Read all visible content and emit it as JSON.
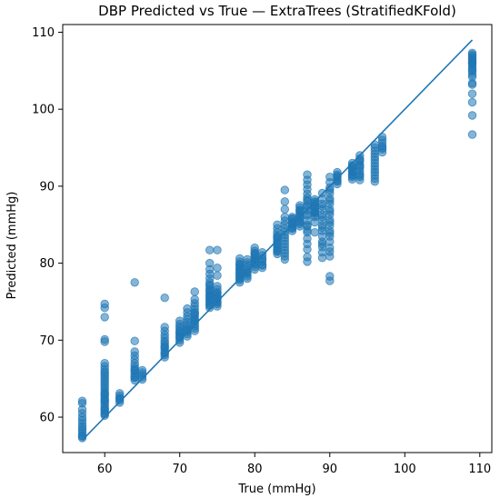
{
  "chart_data": {
    "type": "scatter",
    "title": "DBP Predicted vs True — ExtraTrees (StratifiedKFold)",
    "xlabel": "True (mmHg)",
    "ylabel": "Predicted (mmHg)",
    "xlim": [
      54.4,
      111.6
    ],
    "ylim": [
      55.4,
      111.0
    ],
    "xticks": [
      60,
      70,
      80,
      90,
      100,
      110
    ],
    "yticks": [
      60,
      70,
      80,
      90,
      100,
      110
    ],
    "grid": false,
    "point_color": "#1f77b4",
    "point_opacity": 0.55,
    "reference_line": {
      "x": [
        57,
        109
      ],
      "y": [
        57,
        109
      ],
      "color": "#1f77b4"
    },
    "points": {
      "x": [
        57,
        57,
        57,
        57,
        57,
        57,
        57,
        57,
        57,
        57,
        57,
        57,
        57,
        57,
        60,
        60,
        60,
        60,
        60,
        60,
        60,
        60,
        60,
        60,
        60,
        60,
        60,
        60,
        60,
        60,
        60,
        60,
        60,
        60,
        60,
        60,
        60,
        60,
        60,
        60,
        60,
        60,
        60,
        60,
        60,
        60,
        62,
        62,
        62,
        62,
        62,
        62,
        64,
        64,
        64,
        64,
        64,
        64,
        64,
        64,
        64,
        64,
        64,
        64,
        64,
        64,
        64,
        65,
        65,
        65,
        65,
        65,
        68,
        68,
        68,
        68,
        68,
        68,
        68,
        68,
        68,
        68,
        68,
        68,
        68,
        68,
        68,
        70,
        70,
        70,
        70,
        70,
        70,
        70,
        70,
        70,
        70,
        70,
        70,
        71,
        71,
        71,
        71,
        71,
        71,
        71,
        71,
        71,
        71,
        71,
        71,
        72,
        72,
        72,
        72,
        72,
        72,
        72,
        72,
        72,
        72,
        72,
        72,
        72,
        72,
        72,
        72,
        74,
        74,
        74,
        74,
        74,
        74,
        74,
        74,
        74,
        74,
        74,
        74,
        74,
        74,
        74,
        74,
        74,
        74,
        74,
        74,
        74,
        75,
        75,
        75,
        75,
        75,
        75,
        75,
        75,
        75,
        75,
        75,
        75,
        75,
        75,
        75,
        78,
        78,
        78,
        78,
        78,
        78,
        78,
        78,
        78,
        78,
        78,
        78,
        78,
        78,
        78,
        79,
        79,
        79,
        79,
        79,
        79,
        79,
        79,
        79,
        79,
        80,
        80,
        80,
        80,
        80,
        80,
        80,
        80,
        80,
        80,
        80,
        80,
        80,
        81,
        81,
        81,
        81,
        81,
        81,
        81,
        81,
        83,
        83,
        83,
        83,
        83,
        83,
        83,
        83,
        83,
        83,
        83,
        83,
        83,
        83,
        83,
        84,
        84,
        84,
        84,
        84,
        84,
        84,
        84,
        84,
        84,
        84,
        84,
        84,
        84,
        84,
        84,
        84,
        85,
        85,
        85,
        85,
        85,
        85,
        85,
        85,
        85,
        85,
        86,
        86,
        86,
        86,
        86,
        86,
        86,
        86,
        86,
        86,
        86,
        86,
        86,
        87,
        87,
        87,
        87,
        87,
        87,
        87,
        87,
        87,
        87,
        87,
        87,
        87,
        87,
        87,
        87,
        87,
        87,
        87,
        87,
        87,
        87,
        87,
        88,
        88,
        88,
        88,
        88,
        88,
        88,
        88,
        88,
        88,
        88,
        88,
        88,
        88,
        88,
        89,
        89,
        89,
        89,
        89,
        89,
        89,
        89,
        89,
        89,
        89,
        89,
        89,
        89,
        89,
        89,
        89,
        90,
        90,
        90,
        90,
        90,
        90,
        90,
        90,
        90,
        90,
        90,
        90,
        90,
        90,
        90,
        90,
        90,
        90,
        90,
        90,
        90,
        90,
        90,
        91,
        91,
        91,
        91,
        91,
        91,
        91,
        91,
        93,
        93,
        93,
        93,
        93,
        93,
        93,
        93,
        93,
        93,
        93,
        94,
        94,
        94,
        94,
        94,
        94,
        94,
        94,
        94,
        94,
        94,
        94,
        96,
        96,
        96,
        96,
        96,
        96,
        96,
        96,
        96,
        96,
        96,
        96,
        96,
        97,
        97,
        97,
        97,
        97,
        97,
        97,
        109,
        109,
        109,
        109,
        109,
        109,
        109,
        109,
        109,
        109,
        109,
        109,
        109,
        109,
        109,
        109,
        109,
        109,
        109,
        109,
        109
      ],
      "y": [
        57.3,
        57.6,
        57.9,
        58.2,
        58.5,
        58.8,
        59.2,
        59.6,
        60.0,
        60.5,
        61.0,
        61.8,
        62.1,
        57.5,
        60.2,
        60.5,
        60.8,
        61.1,
        61.4,
        61.7,
        62.0,
        62.3,
        62.6,
        62.9,
        63.2,
        63.5,
        63.8,
        64.1,
        64.4,
        64.7,
        65.0,
        65.3,
        65.6,
        65.9,
        66.2,
        66.6,
        67.0,
        69.8,
        70.1,
        74.2,
        74.7,
        73.0,
        60.4,
        61.0,
        62.2,
        63.0,
        61.9,
        62.2,
        62.5,
        62.8,
        63.1,
        62.4,
        64.8,
        65.1,
        65.4,
        65.7,
        66.0,
        66.3,
        66.6,
        67.0,
        67.5,
        68.0,
        68.5,
        69.9,
        77.5,
        65.2,
        66.1,
        64.9,
        65.2,
        65.5,
        65.8,
        66.1,
        67.8,
        68.1,
        68.4,
        68.7,
        69.0,
        69.3,
        69.6,
        69.9,
        70.3,
        70.7,
        71.2,
        71.7,
        75.5,
        68.3,
        69.1,
        69.7,
        70.0,
        70.3,
        70.6,
        70.9,
        71.2,
        71.5,
        71.8,
        72.1,
        72.5,
        70.4,
        71.0,
        70.5,
        70.8,
        71.1,
        71.4,
        71.7,
        72.0,
        72.3,
        72.7,
        73.1,
        73.6,
        74.1,
        71.3,
        71.2,
        71.5,
        71.8,
        72.1,
        72.4,
        72.7,
        73.0,
        73.3,
        73.6,
        74.0,
        74.4,
        74.8,
        75.3,
        76.3,
        72.6,
        73.5,
        74.2,
        74.5,
        74.8,
        75.1,
        75.4,
        75.7,
        76.0,
        76.3,
        76.6,
        77.0,
        77.5,
        78.0,
        78.6,
        79.2,
        80.0,
        81.7,
        74.6,
        75.2,
        75.8,
        76.5,
        77.2,
        74.4,
        74.7,
        75.0,
        75.3,
        75.6,
        75.9,
        76.2,
        76.6,
        77.0,
        78.4,
        79.4,
        81.7,
        74.9,
        75.5,
        76.1,
        77.5,
        77.8,
        78.1,
        78.4,
        78.7,
        79.0,
        79.3,
        79.6,
        79.9,
        80.2,
        80.6,
        78.0,
        78.6,
        79.2,
        79.8,
        78.0,
        78.3,
        78.6,
        78.9,
        79.2,
        79.5,
        79.8,
        80.1,
        80.5,
        78.8,
        79.2,
        79.5,
        79.8,
        80.1,
        80.4,
        80.7,
        81.0,
        81.3,
        81.6,
        82.0,
        80.0,
        80.6,
        81.2,
        79.4,
        79.8,
        80.2,
        80.6,
        81.0,
        81.4,
        79.7,
        80.5,
        81.2,
        81.5,
        81.8,
        82.1,
        82.4,
        82.7,
        83.0,
        83.3,
        83.6,
        84.0,
        84.5,
        85.0,
        81.6,
        82.5,
        83.4,
        80.5,
        80.9,
        81.3,
        81.7,
        82.1,
        82.5,
        82.9,
        83.3,
        83.7,
        84.1,
        84.5,
        85.0,
        85.5,
        86.0,
        87.0,
        88.0,
        89.5,
        84.2,
        84.5,
        84.8,
        85.1,
        85.4,
        85.7,
        86.0,
        84.6,
        85.2,
        85.8,
        84.8,
        85.1,
        85.4,
        85.7,
        86.0,
        86.3,
        86.6,
        86.9,
        87.2,
        87.5,
        85.3,
        86.1,
        86.8,
        81.8,
        82.5,
        83.2,
        84.0,
        84.8,
        85.5,
        86.2,
        86.9,
        87.5,
        88.0,
        88.5,
        89.0,
        89.6,
        90.2,
        90.8,
        91.5,
        80.2,
        80.8,
        86.4,
        87.3,
        88.2,
        85.0,
        84.3,
        86.2,
        86.5,
        86.8,
        87.1,
        87.4,
        87.7,
        88.0,
        88.3,
        86.7,
        87.3,
        87.9,
        84.0,
        85.3,
        86.0,
        86.6,
        80.7,
        81.4,
        82.1,
        82.8,
        83.5,
        84.2,
        84.9,
        85.6,
        86.3,
        87.0,
        87.7,
        88.4,
        89.1,
        82.5,
        84.6,
        86.0,
        87.4,
        77.7,
        78.3,
        80.9,
        82.0,
        82.8,
        83.5,
        84.2,
        84.9,
        85.6,
        86.3,
        87.0,
        87.7,
        88.4,
        89.1,
        89.8,
        90.5,
        91.2,
        81.5,
        83.9,
        85.3,
        86.7,
        88.1,
        89.5,
        90.3,
        90.6,
        90.9,
        91.2,
        91.5,
        91.8,
        90.7,
        91.3,
        90.9,
        91.2,
        91.5,
        91.8,
        92.1,
        92.4,
        92.7,
        93.0,
        91.4,
        92.0,
        92.6,
        90.8,
        91.2,
        91.6,
        92.0,
        92.4,
        92.8,
        93.2,
        93.6,
        94.0,
        91.4,
        92.6,
        93.4,
        90.6,
        91.0,
        91.4,
        91.8,
        92.2,
        92.6,
        93.0,
        93.4,
        93.8,
        94.2,
        94.6,
        95.0,
        95.4,
        94.4,
        94.8,
        95.2,
        95.6,
        96.0,
        96.4,
        95.0,
        96.7,
        99.2,
        100.9,
        102.0,
        103.4,
        104.5,
        104.9,
        105.3,
        105.6,
        105.9,
        106.1,
        106.3,
        106.5,
        106.7,
        106.9,
        107.1,
        107.3,
        103.2,
        104.2,
        105.1,
        106.0
      ]
    }
  }
}
